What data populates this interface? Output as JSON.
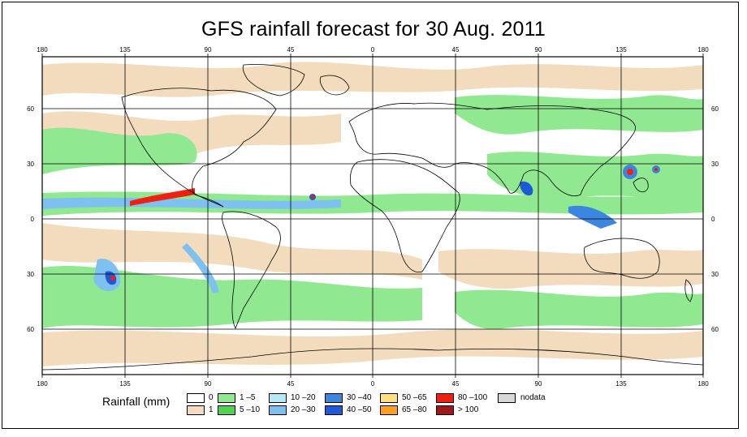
{
  "title": "GFS rainfall forecast for 30 Aug. 2011",
  "axes": {
    "lon_labels": [
      "180",
      "135",
      "90",
      "45",
      "0",
      "45",
      "90",
      "135",
      "180"
    ],
    "lat_labels": [
      "60",
      "30",
      "0",
      "30",
      "60"
    ]
  },
  "legend": {
    "title": "Rainfall (mm)",
    "entries": [
      {
        "label": "0",
        "color": "#ffffff"
      },
      {
        "label": "1",
        "color": "#f2dcbd"
      },
      {
        "label": "1 –5",
        "color": "#90e890"
      },
      {
        "label": "5 –10",
        "color": "#4ed44e"
      },
      {
        "label": "10 –20",
        "color": "#b8e8f8"
      },
      {
        "label": "20 –30",
        "color": "#7ec0f0"
      },
      {
        "label": "30 –40",
        "color": "#3c86e0"
      },
      {
        "label": "40 –50",
        "color": "#1e5ad8"
      },
      {
        "label": "50 –65",
        "color": "#ffe080"
      },
      {
        "label": "65 –80",
        "color": "#ffa020"
      },
      {
        "label": "80 –100",
        "color": "#ee2010"
      },
      {
        "label": "> 100",
        "color": "#a01818"
      },
      {
        "label": "nodata",
        "color": "#d8d8d8"
      }
    ]
  }
}
